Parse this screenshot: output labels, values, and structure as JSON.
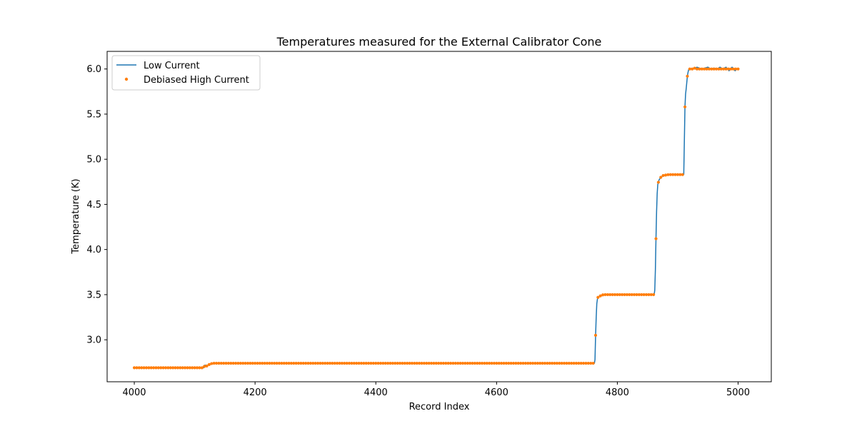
{
  "chart_data": {
    "type": "line",
    "title": "Temperatures measured for the External Calibrator Cone",
    "xlabel": "Record Index",
    "ylabel": "Temperature (K)",
    "xlim": [
      3955,
      5055
    ],
    "ylim": [
      2.535,
      6.195
    ],
    "xticks": [
      4000,
      4200,
      4400,
      4600,
      4800,
      5000
    ],
    "yticks": [
      3.0,
      3.5,
      4.0,
      4.5,
      5.0,
      5.5,
      6.0
    ],
    "xtick_labels": [
      "4000",
      "4200",
      "4400",
      "4600",
      "4800",
      "5000"
    ],
    "ytick_labels": [
      "3.0",
      "3.5",
      "4.0",
      "4.5",
      "5.0",
      "5.5",
      "6.0"
    ],
    "grid": false,
    "legend_position": "top-left",
    "series": [
      {
        "name": "Low Current",
        "style": "line",
        "color": "#1f77b4",
        "x": [
          4000,
          4100,
          4115,
          4117,
          4120,
          4125,
          4130,
          4300,
          4500,
          4700,
          4760,
          4762,
          4763,
          4764,
          4765,
          4766,
          4767,
          4768,
          4770,
          4773,
          4777,
          4790,
          4860,
          4861,
          4862,
          4863,
          4864,
          4865,
          4866,
          4867,
          4869,
          4872,
          4876,
          4885,
          4908,
          4910,
          4911,
          4912,
          4913,
          4914,
          4915,
          4916,
          4917,
          4918,
          4920,
          4925,
          4932,
          4940,
          4950,
          4955,
          4960,
          4965,
          4970,
          4975,
          4980,
          4985,
          4990,
          4995,
          5000
        ],
        "y": [
          2.69,
          2.69,
          2.69,
          2.72,
          2.71,
          2.73,
          2.74,
          2.74,
          2.74,
          2.74,
          2.74,
          2.74,
          2.78,
          3.05,
          3.25,
          3.4,
          3.45,
          3.47,
          3.48,
          3.49,
          3.5,
          3.5,
          3.5,
          3.5,
          3.55,
          3.77,
          4.12,
          4.42,
          4.62,
          4.72,
          4.77,
          4.8,
          4.82,
          4.83,
          4.83,
          4.83,
          5.2,
          5.58,
          5.72,
          5.78,
          5.85,
          5.92,
          5.96,
          5.99,
          6.0,
          6.0,
          6.02,
          6.0,
          6.02,
          6.0,
          6.01,
          6.0,
          6.02,
          6.0,
          6.02,
          5.98,
          6.02,
          5.98,
          6.01
        ]
      },
      {
        "name": "Debiased High Current",
        "style": "scatter",
        "color": "#ff7f0e",
        "x_range": [
          4000,
          5000
        ],
        "x_step": 4,
        "transitions": "same as Low Current"
      }
    ]
  }
}
